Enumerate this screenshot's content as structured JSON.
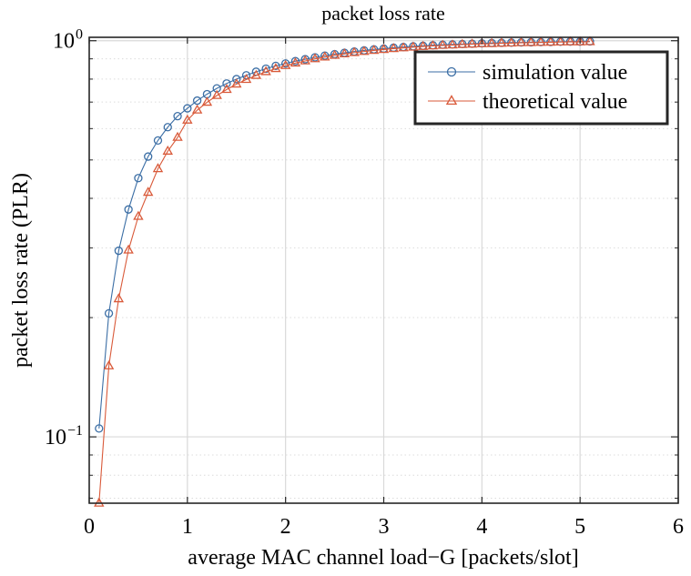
{
  "chart_data": {
    "type": "line",
    "title": "packet loss rate",
    "xlabel": "average MAC channel load−G [packets/slot]",
    "ylabel": "packet loss rate (PLR)",
    "xlim": [
      0,
      6
    ],
    "ylim": [
      0.068,
      1.02
    ],
    "yscale": "log",
    "xticks": [
      0,
      1,
      2,
      3,
      4,
      5,
      6
    ],
    "yticks": [
      {
        "value": 1,
        "base": "10",
        "exp": "0"
      },
      {
        "value": 0.1,
        "base": "10",
        "exp": "−1"
      }
    ],
    "grid": true,
    "legend_position": "top-right",
    "series": [
      {
        "name": "simulation value",
        "color": "#3b6ea5",
        "marker": "circle",
        "x": [
          0.1,
          0.2,
          0.3,
          0.4,
          0.5,
          0.6,
          0.7,
          0.8,
          0.9,
          1.0,
          1.1,
          1.2,
          1.3,
          1.4,
          1.5,
          1.6,
          1.7,
          1.8,
          1.9,
          2.0,
          2.1,
          2.2,
          2.3,
          2.4,
          2.5,
          2.6,
          2.7,
          2.8,
          2.9,
          3.0,
          3.1,
          3.2,
          3.3,
          3.4,
          3.5,
          3.6,
          3.7,
          3.8,
          3.9,
          4.0,
          4.1,
          4.2,
          4.3,
          4.4,
          4.5,
          4.6,
          4.7,
          4.8,
          4.9,
          5.0,
          5.1
        ],
        "y": [
          0.105,
          0.205,
          0.295,
          0.375,
          0.45,
          0.51,
          0.56,
          0.605,
          0.645,
          0.675,
          0.706,
          0.733,
          0.758,
          0.78,
          0.8,
          0.818,
          0.835,
          0.85,
          0.864,
          0.876,
          0.888,
          0.898,
          0.908,
          0.917,
          0.925,
          0.932,
          0.939,
          0.945,
          0.951,
          0.955,
          0.96,
          0.964,
          0.968,
          0.971,
          0.974,
          0.977,
          0.979,
          0.981,
          0.983,
          0.985,
          0.987,
          0.988,
          0.989,
          0.99,
          0.991,
          0.992,
          0.993,
          0.994,
          0.995,
          0.995,
          0.996
        ]
      },
      {
        "name": "theoretical value",
        "color": "#d95a3a",
        "marker": "triangle",
        "x": [
          0.1,
          0.2,
          0.3,
          0.4,
          0.5,
          0.6,
          0.7,
          0.8,
          0.9,
          1.0,
          1.1,
          1.2,
          1.3,
          1.4,
          1.5,
          1.6,
          1.7,
          1.8,
          1.9,
          2.0,
          2.1,
          2.2,
          2.3,
          2.4,
          2.5,
          2.6,
          2.7,
          2.8,
          2.9,
          3.0,
          3.1,
          3.2,
          3.3,
          3.4,
          3.5,
          3.6,
          3.7,
          3.8,
          3.9,
          4.0,
          4.1,
          4.2,
          4.3,
          4.4,
          4.5,
          4.6,
          4.7,
          4.8,
          4.9,
          5.0,
          5.1
        ],
        "y": [
          0.068,
          0.151,
          0.223,
          0.296,
          0.36,
          0.414,
          0.475,
          0.526,
          0.57,
          0.63,
          0.668,
          0.699,
          0.727,
          0.753,
          0.777,
          0.798,
          0.817,
          0.835,
          0.85,
          0.865,
          0.878,
          0.889,
          0.9,
          0.909,
          0.918,
          0.926,
          0.933,
          0.939,
          0.945,
          0.95,
          0.955,
          0.959,
          0.963,
          0.967,
          0.97,
          0.973,
          0.975,
          0.978,
          0.98,
          0.982,
          0.983,
          0.985,
          0.986,
          0.988,
          0.989,
          0.99,
          0.991,
          0.992,
          0.993,
          0.993,
          0.994
        ]
      }
    ]
  }
}
